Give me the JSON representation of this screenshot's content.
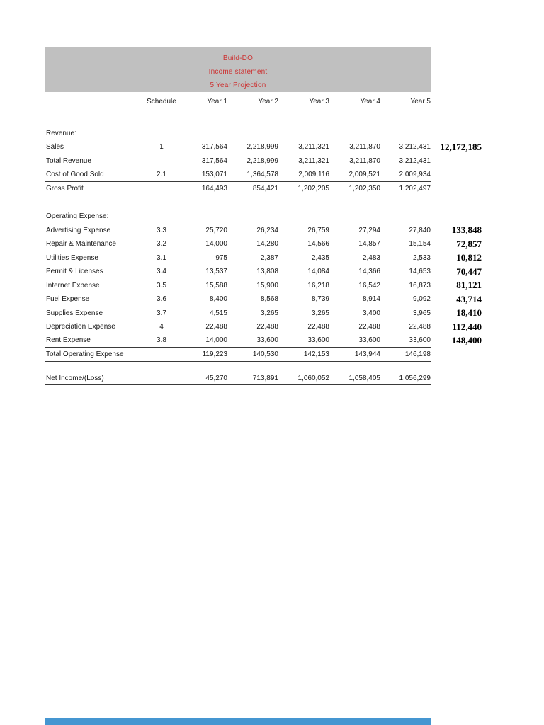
{
  "title_block": {
    "line1": "Build-DO",
    "line2": "Income statement",
    "line3": "5 Year Projection",
    "bg_color": "#c0c0c0",
    "text_color": "#cc3333"
  },
  "columns": {
    "schedule": "Schedule",
    "years": [
      "Year 1",
      "Year 2",
      "Year 3",
      "Year 4",
      "Year 5"
    ]
  },
  "rows": [
    {
      "type": "spacer",
      "h": 26
    },
    {
      "type": "section",
      "label": "Revenue:"
    },
    {
      "label": "Sales",
      "schedule": "1",
      "values": [
        "317,564",
        "2,218,999",
        "3,211,321",
        "3,211,870",
        "3,212,431"
      ],
      "annotation": "12,172,185",
      "border_bottom": true
    },
    {
      "label": "Total Revenue",
      "values": [
        "317,564",
        "2,218,999",
        "3,211,321",
        "3,211,870",
        "3,212,431"
      ]
    },
    {
      "label": "Cost of Good Sold",
      "schedule": "2.1",
      "values": [
        "153,071",
        "1,364,578",
        "2,009,116",
        "2,009,521",
        "2,009,934"
      ],
      "border_bottom": true
    },
    {
      "label": "Gross Profit",
      "values": [
        "164,493",
        "854,421",
        "1,202,205",
        "1,202,350",
        "1,202,497"
      ]
    },
    {
      "type": "spacer",
      "h": 19.5
    },
    {
      "type": "section",
      "label": "Operating Expense:"
    },
    {
      "label": "Advertising Expense",
      "schedule": "3.3",
      "values": [
        "25,720",
        "26,234",
        "26,759",
        "27,294",
        "27,840"
      ],
      "annotation": "133,848"
    },
    {
      "label": "Repair & Maintenance",
      "schedule": "3.2",
      "values": [
        "14,000",
        "14,280",
        "14,566",
        "14,857",
        "15,154"
      ],
      "annotation": "72,857"
    },
    {
      "label": "Utilities Expense",
      "schedule": "3.1",
      "values": [
        "975",
        "2,387",
        "2,435",
        "2,483",
        "2,533"
      ],
      "annotation": "10,812"
    },
    {
      "label": "Permit & Licenses",
      "schedule": "3.4",
      "values": [
        "13,537",
        "13,808",
        "14,084",
        "14,366",
        "14,653"
      ],
      "annotation": "70,447"
    },
    {
      "label": "Internet Expense",
      "schedule": "3.5",
      "values": [
        "15,588",
        "15,900",
        "16,218",
        "16,542",
        "16,873"
      ],
      "annotation": "81,121"
    },
    {
      "label": "Fuel Expense",
      "schedule": "3.6",
      "values": [
        "8,400",
        "8,568",
        "8,739",
        "8,914",
        "9,092"
      ],
      "annotation": "43,714"
    },
    {
      "label": "Supplies Expense",
      "schedule": "3.7",
      "values": [
        "4,515",
        "3,265",
        "3,265",
        "3,400",
        "3,965"
      ],
      "annotation": "18,410"
    },
    {
      "label": "Depreciation Expense",
      "schedule": "4",
      "values": [
        "22,488",
        "22,488",
        "22,488",
        "22,488",
        "22,488"
      ],
      "annotation": "112,440"
    },
    {
      "label": "Rent Expense",
      "schedule": "3.8",
      "values": [
        "14,000",
        "33,600",
        "33,600",
        "33,600",
        "33,600"
      ],
      "annotation": "148,400",
      "border_bottom": true
    },
    {
      "label": "Total Operating Expense",
      "values": [
        "119,223",
        "140,530",
        "142,153",
        "143,944",
        "146,198"
      ],
      "border_bottom": true
    },
    {
      "type": "spacer",
      "h": 14
    },
    {
      "label": "Net Income/(Loss)",
      "values": [
        "45,270",
        "713,891",
        "1,060,052",
        "1,058,405",
        "1,056,299"
      ],
      "border_top": true,
      "border_bottom": true
    }
  ],
  "bottom_bar": {
    "color": "#4596d1"
  }
}
